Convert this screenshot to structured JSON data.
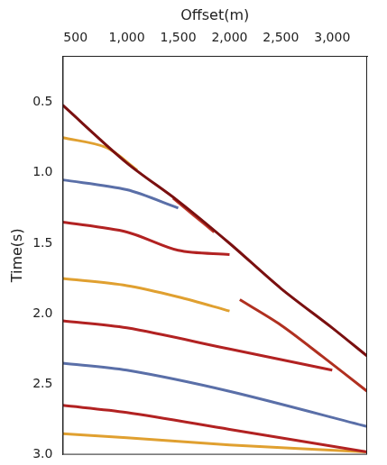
{
  "chart_data": {
    "type": "line",
    "x_label": "Offset(m)",
    "y_label": "Time(s)",
    "xlim": [
      375,
      3340
    ],
    "xticks": [
      500,
      1000,
      1500,
      2000,
      2500,
      3000
    ],
    "ylim": [
      0.17,
      3
    ],
    "yticks": [
      0.5,
      1,
      1.5,
      2,
      2.5,
      3
    ],
    "grid": false,
    "series": [
      {
        "color": "#7a1010",
        "x": [
          375,
          1000,
          1500,
          2000,
          2500,
          3000,
          3340
        ],
        "values": [
          0.52,
          0.93,
          1.2,
          1.5,
          1.82,
          2.1,
          2.3
        ]
      },
      {
        "color": "#c0392b",
        "x": [
          1450,
          1650,
          1850
        ],
        "values": [
          1.18,
          1.3,
          1.42
        ]
      },
      {
        "color": "#b03020",
        "x": [
          2100,
          2500,
          2900,
          3340
        ],
        "values": [
          1.9,
          2.08,
          2.3,
          2.55
        ]
      },
      {
        "color": "#e0a030",
        "x": [
          375,
          800,
          1100
        ],
        "values": [
          0.75,
          0.82,
          0.98
        ]
      },
      {
        "color": "#5a6fa8",
        "x": [
          375,
          1000,
          1500
        ],
        "values": [
          1.05,
          1.12,
          1.25
        ]
      },
      {
        "color": "#b22222",
        "x": [
          375,
          1000,
          1500,
          2000
        ],
        "values": [
          1.35,
          1.42,
          1.55,
          1.58
        ]
      },
      {
        "color": "#e0a030",
        "x": [
          375,
          1000,
          1500,
          2000
        ],
        "values": [
          1.75,
          1.8,
          1.88,
          1.98
        ]
      },
      {
        "color": "#b22222",
        "x": [
          375,
          1000,
          2000,
          3000
        ],
        "values": [
          2.05,
          2.1,
          2.25,
          2.4
        ]
      },
      {
        "color": "#5a6fa8",
        "x": [
          375,
          1000,
          2000,
          3340
        ],
        "values": [
          2.35,
          2.4,
          2.55,
          2.8
        ]
      },
      {
        "color": "#b22222",
        "x": [
          375,
          1000,
          2000,
          3340
        ],
        "values": [
          2.65,
          2.7,
          2.82,
          2.98
        ]
      },
      {
        "color": "#e0a030",
        "x": [
          375,
          1000,
          2000,
          3340
        ],
        "values": [
          2.85,
          2.88,
          2.93,
          2.98
        ]
      }
    ]
  }
}
